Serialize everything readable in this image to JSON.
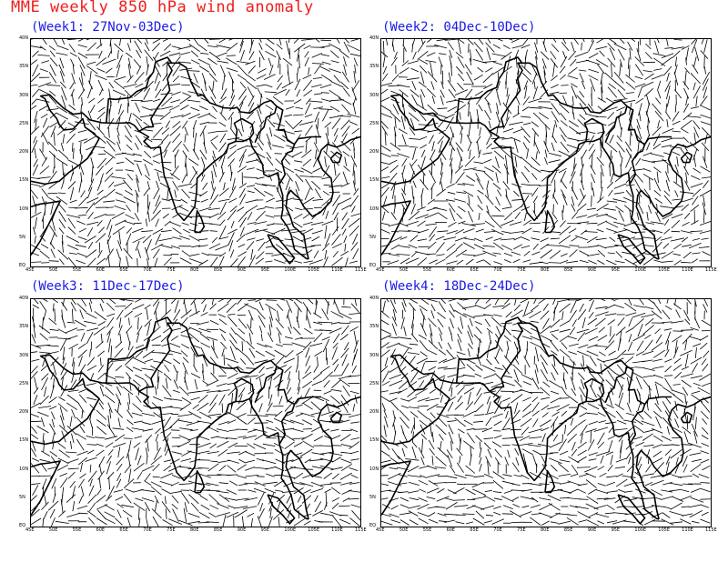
{
  "title": "MME weekly 850 hPa wind anomaly",
  "panels": [
    {
      "label": "(Week1: 27Nov-03Dec)"
    },
    {
      "label": "(Week2: 04Dec-10Dec)"
    },
    {
      "label": "(Week3: 11Dec-17Dec)"
    },
    {
      "label": "(Week4: 18Dec-24Dec)"
    }
  ],
  "map": {
    "lon_range": [
      45,
      115
    ],
    "lat_range": [
      0,
      40
    ],
    "x_ticks": [
      "45E",
      "50E",
      "55E",
      "60E",
      "65E",
      "70E",
      "75E",
      "80E",
      "85E",
      "90E",
      "95E",
      "100E",
      "105E",
      "110E",
      "115E"
    ],
    "y_ticks": [
      "EQ",
      "5N",
      "10N",
      "15N",
      "20N",
      "25N",
      "30N",
      "35N",
      "40N"
    ],
    "line_color": "#000000"
  }
}
